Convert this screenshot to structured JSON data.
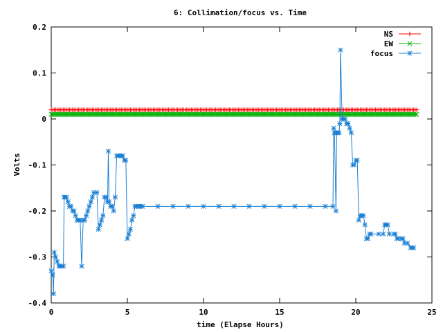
{
  "chart_data": {
    "type": "line",
    "title": "6: Collimation/focus vs. Time",
    "xlabel": "time (Elapse Hours)",
    "ylabel": "Volts",
    "xlim": [
      0,
      25
    ],
    "ylim": [
      -0.4,
      0.2
    ],
    "xticks": [
      0,
      5,
      10,
      15,
      20,
      25
    ],
    "yticks": [
      -0.4,
      -0.3,
      -0.2,
      -0.1,
      0,
      0.1,
      0.2
    ],
    "xtick_labels": [
      "0",
      "5",
      "10",
      "15",
      "20",
      "25"
    ],
    "ytick_labels": [
      "-0.4",
      "-0.3",
      "-0.2",
      "-0.1",
      "0",
      "0.1",
      "0.2"
    ],
    "grid": false,
    "legend_position": "top-right",
    "series": [
      {
        "name": "NS",
        "color": "#ff0000",
        "marker": "plus",
        "x_start": 0,
        "x_end": 24,
        "x_step": 0.1,
        "constant_value": 0.02
      },
      {
        "name": "EW",
        "color": "#00b000",
        "marker": "cross",
        "x_start": 0,
        "x_end": 24,
        "x_step": 0.1,
        "constant_value": 0.01
      },
      {
        "name": "focus",
        "color": "#1a7fd4",
        "marker": "star",
        "points": [
          [
            0.0,
            -0.33
          ],
          [
            0.1,
            -0.34
          ],
          [
            0.15,
            -0.38
          ],
          [
            0.2,
            -0.29
          ],
          [
            0.3,
            -0.3
          ],
          [
            0.4,
            -0.31
          ],
          [
            0.5,
            -0.32
          ],
          [
            0.6,
            -0.32
          ],
          [
            0.7,
            -0.32
          ],
          [
            0.8,
            -0.32
          ],
          [
            0.85,
            -0.17
          ],
          [
            0.9,
            -0.17
          ],
          [
            1.0,
            -0.17
          ],
          [
            1.1,
            -0.18
          ],
          [
            1.2,
            -0.19
          ],
          [
            1.3,
            -0.19
          ],
          [
            1.4,
            -0.2
          ],
          [
            1.5,
            -0.2
          ],
          [
            1.6,
            -0.21
          ],
          [
            1.7,
            -0.22
          ],
          [
            1.8,
            -0.22
          ],
          [
            1.9,
            -0.22
          ],
          [
            2.0,
            -0.32
          ],
          [
            2.1,
            -0.22
          ],
          [
            2.2,
            -0.22
          ],
          [
            2.3,
            -0.21
          ],
          [
            2.4,
            -0.2
          ],
          [
            2.5,
            -0.19
          ],
          [
            2.6,
            -0.18
          ],
          [
            2.7,
            -0.17
          ],
          [
            2.8,
            -0.16
          ],
          [
            3.0,
            -0.16
          ],
          [
            3.1,
            -0.24
          ],
          [
            3.2,
            -0.23
          ],
          [
            3.3,
            -0.22
          ],
          [
            3.4,
            -0.21
          ],
          [
            3.5,
            -0.17
          ],
          [
            3.6,
            -0.17
          ],
          [
            3.7,
            -0.18
          ],
          [
            3.75,
            -0.07
          ],
          [
            3.8,
            -0.18
          ],
          [
            3.9,
            -0.19
          ],
          [
            4.0,
            -0.19
          ],
          [
            4.1,
            -0.2
          ],
          [
            4.2,
            -0.17
          ],
          [
            4.3,
            -0.08
          ],
          [
            4.4,
            -0.08
          ],
          [
            4.5,
            -0.08
          ],
          [
            4.6,
            -0.08
          ],
          [
            4.7,
            -0.08
          ],
          [
            4.8,
            -0.09
          ],
          [
            4.9,
            -0.09
          ],
          [
            5.0,
            -0.26
          ],
          [
            5.1,
            -0.25
          ],
          [
            5.2,
            -0.24
          ],
          [
            5.3,
            -0.22
          ],
          [
            5.4,
            -0.21
          ],
          [
            5.5,
            -0.19
          ],
          [
            5.6,
            -0.19
          ],
          [
            5.7,
            -0.19
          ],
          [
            5.8,
            -0.19
          ],
          [
            5.9,
            -0.19
          ],
          [
            6.0,
            -0.19
          ],
          [
            7.0,
            -0.19
          ],
          [
            8.0,
            -0.19
          ],
          [
            9.0,
            -0.19
          ],
          [
            10.0,
            -0.19
          ],
          [
            11.0,
            -0.19
          ],
          [
            12.0,
            -0.19
          ],
          [
            13.0,
            -0.19
          ],
          [
            14.0,
            -0.19
          ],
          [
            15.0,
            -0.19
          ],
          [
            16.0,
            -0.19
          ],
          [
            17.0,
            -0.19
          ],
          [
            18.0,
            -0.19
          ],
          [
            18.5,
            -0.19
          ],
          [
            18.55,
            -0.02
          ],
          [
            18.6,
            -0.03
          ],
          [
            18.7,
            -0.2
          ],
          [
            18.75,
            -0.03
          ],
          [
            18.8,
            -0.03
          ],
          [
            18.9,
            -0.03
          ],
          [
            18.95,
            -0.01
          ],
          [
            19.0,
            0.15
          ],
          [
            19.1,
            0.0
          ],
          [
            19.2,
            0.0
          ],
          [
            19.3,
            0.0
          ],
          [
            19.4,
            -0.01
          ],
          [
            19.5,
            -0.01
          ],
          [
            19.6,
            -0.02
          ],
          [
            19.7,
            -0.03
          ],
          [
            19.8,
            -0.1
          ],
          [
            19.9,
            -0.1
          ],
          [
            20.0,
            -0.09
          ],
          [
            20.1,
            -0.09
          ],
          [
            20.2,
            -0.22
          ],
          [
            20.3,
            -0.21
          ],
          [
            20.4,
            -0.21
          ],
          [
            20.5,
            -0.21
          ],
          [
            20.6,
            -0.23
          ],
          [
            20.7,
            -0.26
          ],
          [
            20.8,
            -0.26
          ],
          [
            20.9,
            -0.25
          ],
          [
            21.0,
            -0.25
          ],
          [
            21.5,
            -0.25
          ],
          [
            21.8,
            -0.25
          ],
          [
            21.9,
            -0.23
          ],
          [
            22.0,
            -0.23
          ],
          [
            22.1,
            -0.23
          ],
          [
            22.2,
            -0.25
          ],
          [
            22.5,
            -0.25
          ],
          [
            22.6,
            -0.25
          ],
          [
            22.7,
            -0.26
          ],
          [
            22.8,
            -0.26
          ],
          [
            23.0,
            -0.26
          ],
          [
            23.1,
            -0.26
          ],
          [
            23.2,
            -0.27
          ],
          [
            23.4,
            -0.27
          ],
          [
            23.6,
            -0.28
          ],
          [
            23.7,
            -0.28
          ],
          [
            23.8,
            -0.28
          ]
        ]
      }
    ]
  }
}
